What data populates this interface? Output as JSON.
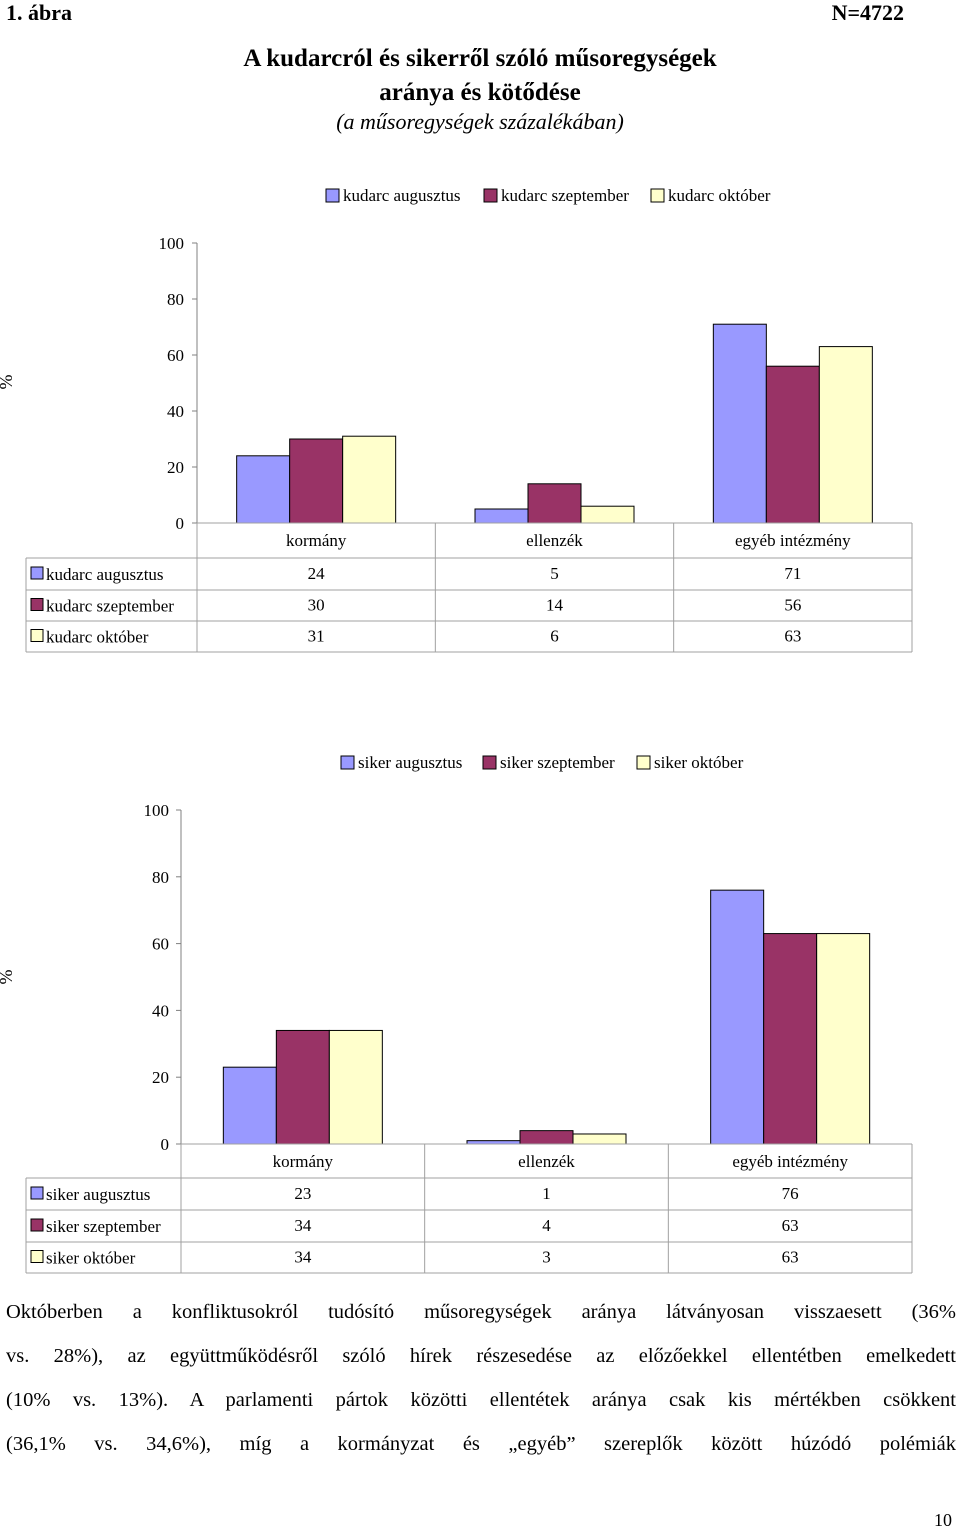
{
  "header": {
    "figure_number": "1. ábra",
    "n_label": "N=4722",
    "title_line1": "A kudarcról és sikerről szóló műsoregységek",
    "title_line2": "aránya és kötődése",
    "subtitle": "(a műsoregységek százalékában)"
  },
  "colors": {
    "augusztus": "#9999ff",
    "szeptember": "#993366",
    "oktober": "#ffffcc"
  },
  "chart_data": [
    {
      "type": "bar",
      "categories": [
        "kormány",
        "ellenzék",
        "egyéb intézmény"
      ],
      "series": [
        {
          "name": "kudarc augusztus",
          "values": [
            24,
            5,
            71
          ]
        },
        {
          "name": "kudarc szeptember",
          "values": [
            30,
            14,
            56
          ]
        },
        {
          "name": "kudarc október",
          "values": [
            31,
            6,
            63
          ]
        }
      ],
      "ylabel": "%",
      "ylim": [
        0,
        100
      ],
      "yticks": [
        0,
        20,
        40,
        60,
        80,
        100
      ],
      "grid": false,
      "legend": "top",
      "data_table": true
    },
    {
      "type": "bar",
      "categories": [
        "kormány",
        "ellenzék",
        "egyéb intézmény"
      ],
      "series": [
        {
          "name": "siker augusztus",
          "values": [
            23,
            1,
            76
          ]
        },
        {
          "name": "siker szeptember",
          "values": [
            34,
            4,
            63
          ]
        },
        {
          "name": "siker október",
          "values": [
            34,
            3,
            63
          ]
        }
      ],
      "ylabel": "%",
      "ylim": [
        0,
        100
      ],
      "yticks": [
        0,
        20,
        40,
        60,
        80,
        100
      ],
      "grid": false,
      "legend": "top",
      "data_table": true
    }
  ],
  "body_text": [
    "Októberben a konfliktusokról tudósító műsoregységek aránya látványosan visszaesett (36%",
    "vs. 28%), az együttműködésről szóló hírek részesedése az előzőekkel ellentétben emelkedett",
    "(10% vs. 13%). A parlamenti pártok közötti ellentétek aránya csak kis mértékben csökkent",
    "(36,1% vs. 34,6%), míg a kormányzat és „egyéb” szereplők között húzódó polémiák"
  ],
  "page_number": "10"
}
